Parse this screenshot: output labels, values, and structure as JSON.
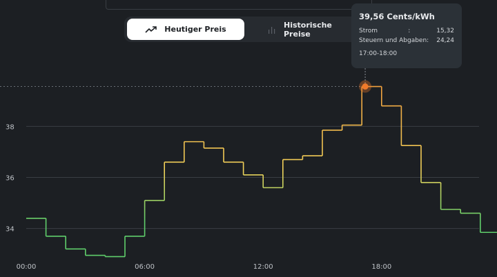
{
  "toggle": {
    "today_label": "Heutiger Preis",
    "history_label": "Historische Preise"
  },
  "tooltip": {
    "title": "39,56 Cents/kWh",
    "rows": [
      {
        "label": "Strom",
        "sep": ":",
        "value": "15,32"
      },
      {
        "label": "Steuern und Abgaben:",
        "sep": "",
        "value": "24,24"
      }
    ],
    "time": "17:00-18:00"
  },
  "colors": {
    "background": "#1c1f23",
    "low": "#5fcf6b",
    "mid": "#f2d35a",
    "high": "#f29a3a",
    "marker": "#f07a2a"
  },
  "chart_data": {
    "type": "line",
    "step": true,
    "xlabel": "",
    "ylabel": "",
    "x_ticks": [
      "00:00",
      "06:00",
      "12:00",
      "18:00"
    ],
    "y_ticks": [
      34,
      36,
      38
    ],
    "ylim": [
      32.4,
      40.6
    ],
    "grid": true,
    "series": [
      {
        "hours": [
          0,
          1,
          2,
          3,
          4,
          5,
          6,
          7,
          8,
          9,
          10,
          11,
          12,
          13,
          14,
          15,
          16,
          17,
          18,
          19,
          20,
          21,
          22,
          23
        ],
        "values": [
          34.4,
          33.7,
          33.2,
          32.95,
          32.9,
          33.7,
          35.1,
          36.6,
          37.4,
          37.15,
          36.6,
          36.1,
          35.6,
          36.7,
          36.85,
          37.85,
          38.05,
          39.56,
          38.8,
          37.25,
          35.8,
          34.75,
          34.6,
          33.85
        ]
      }
    ],
    "highlight": {
      "hour": 17,
      "value": 39.56
    }
  }
}
